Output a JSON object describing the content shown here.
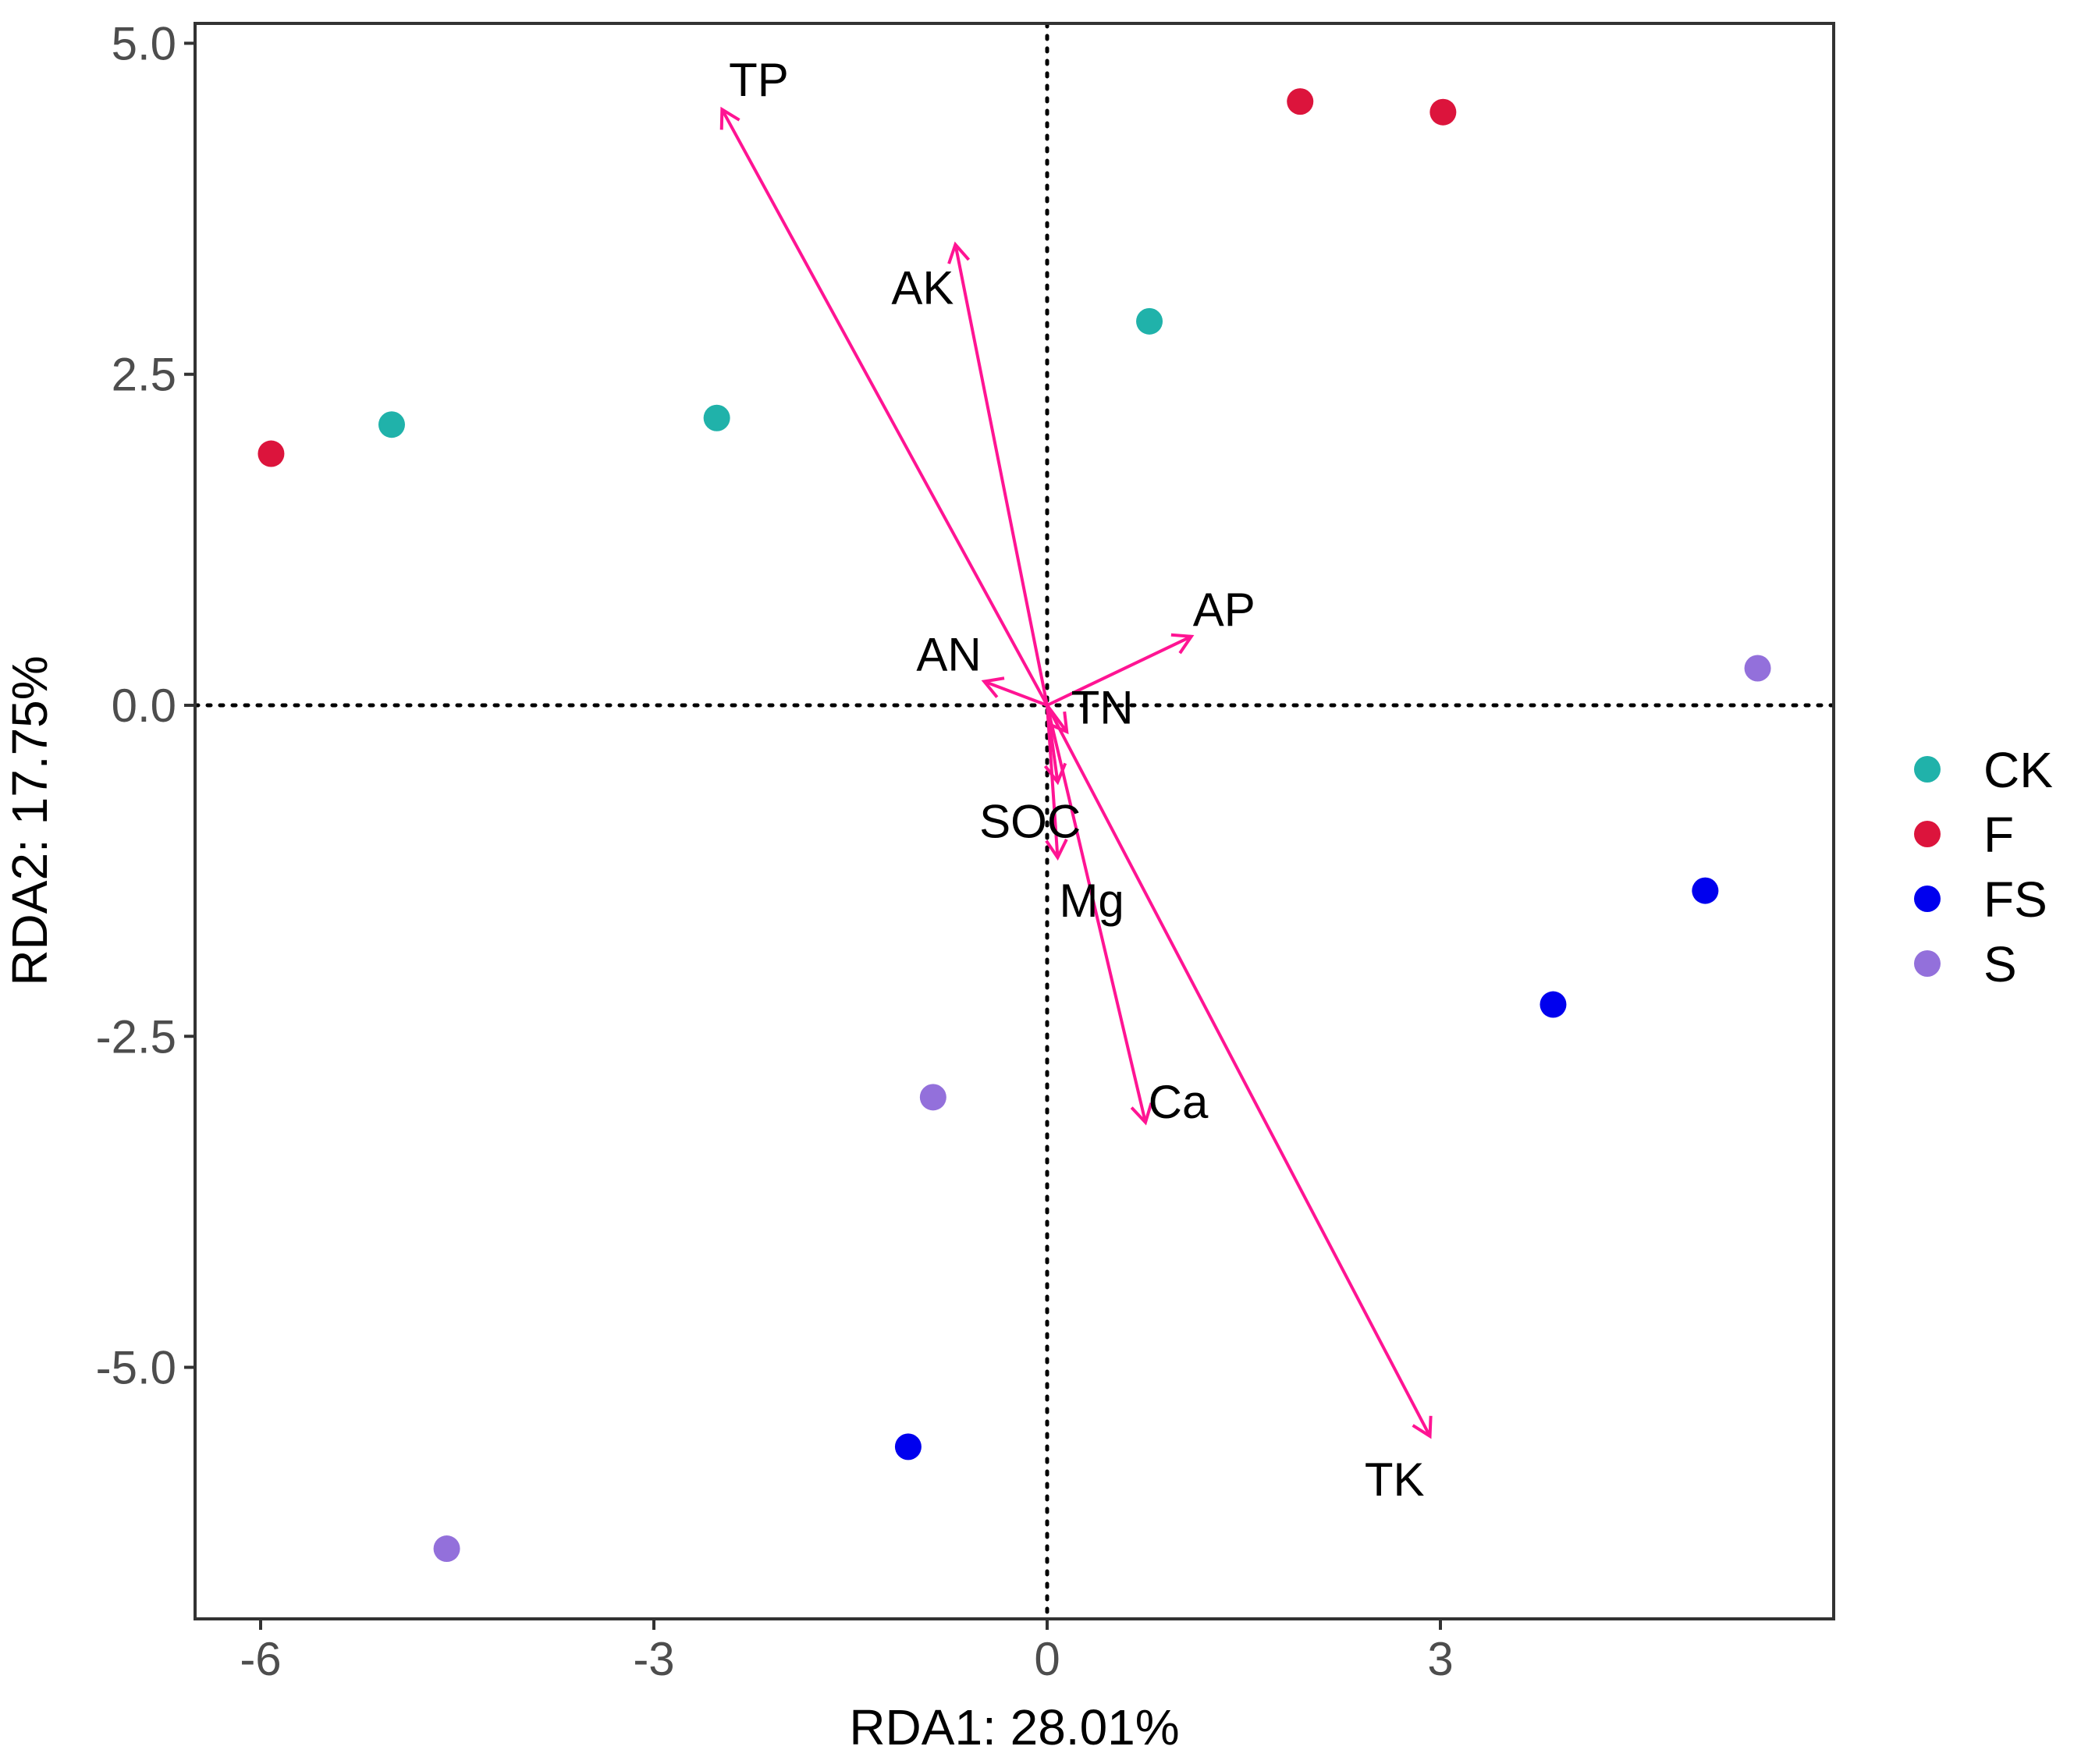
{
  "chart_data": {
    "type": "scatter",
    "subtype": "rda-biplot",
    "xlabel": "RDA1: 28.01%",
    "ylabel": "RDA2: 17.75%",
    "xlim": [
      -6.5,
      6
    ],
    "ylim": [
      -6.9,
      5.15
    ],
    "xticks": [
      -6,
      -3,
      0,
      3
    ],
    "xtick_labels": [
      "-6",
      "-3",
      "0",
      "3"
    ],
    "yticks": [
      5.0,
      2.5,
      0.0,
      -2.5,
      -5.0
    ],
    "ytick_labels": [
      "5.0",
      "2.5",
      "0.0",
      "-2.5",
      "-5.0"
    ],
    "grid": false,
    "reference_lines": {
      "x": 0,
      "y": 0,
      "style": "dotted"
    },
    "legend_position": "right",
    "arrow_color": "#FF1493",
    "groups": [
      {
        "name": "CK",
        "color": "#20B2AA",
        "points": [
          [
            -5.0,
            2.12
          ],
          [
            -2.52,
            2.17
          ],
          [
            0.78,
            2.9
          ]
        ]
      },
      {
        "name": "F",
        "color": "#DC143C",
        "points": [
          [
            -5.92,
            1.9
          ],
          [
            1.93,
            4.56
          ],
          [
            3.02,
            4.48
          ]
        ]
      },
      {
        "name": "FS",
        "color": "#0000EE",
        "points": [
          [
            -1.06,
            -5.6
          ],
          [
            3.86,
            -2.26
          ],
          [
            5.02,
            -1.4
          ]
        ]
      },
      {
        "name": "S",
        "color": "#9370DB",
        "points": [
          [
            -4.58,
            -6.37
          ],
          [
            -0.87,
            -2.96
          ],
          [
            5.42,
            0.28
          ]
        ]
      }
    ],
    "arrows": [
      {
        "name": "TP",
        "x": -2.48,
        "y": 4.5,
        "label_x": -2.2,
        "label_y": 4.72,
        "anchor": "middle"
      },
      {
        "name": "AK",
        "x": -0.7,
        "y": 3.48,
        "label_x": -0.95,
        "label_y": 3.15,
        "anchor": "middle"
      },
      {
        "name": "AP",
        "x": 1.1,
        "y": 0.52,
        "label_x": 1.35,
        "label_y": 0.72,
        "anchor": "middle"
      },
      {
        "name": "AN",
        "x": -0.48,
        "y": 0.18,
        "label_x": -0.75,
        "label_y": 0.38,
        "anchor": "middle"
      },
      {
        "name": "TN",
        "x": 0.15,
        "y": -0.2,
        "label_x": 0.42,
        "label_y": -0.02,
        "anchor": "middle"
      },
      {
        "name": "SOC",
        "x": 0.08,
        "y": -0.58,
        "label_x": -0.13,
        "label_y": -0.88,
        "anchor": "middle"
      },
      {
        "name": "Mg",
        "x": 0.08,
        "y": -1.15,
        "label_x": 0.34,
        "label_y": -1.48,
        "anchor": "middle"
      },
      {
        "name": "Ca",
        "x": 0.75,
        "y": -3.15,
        "label_x": 1.0,
        "label_y": -3.0,
        "anchor": "middle"
      },
      {
        "name": "TK",
        "x": 2.92,
        "y": -5.52,
        "label_x": 2.65,
        "label_y": -5.85,
        "anchor": "middle"
      }
    ]
  }
}
